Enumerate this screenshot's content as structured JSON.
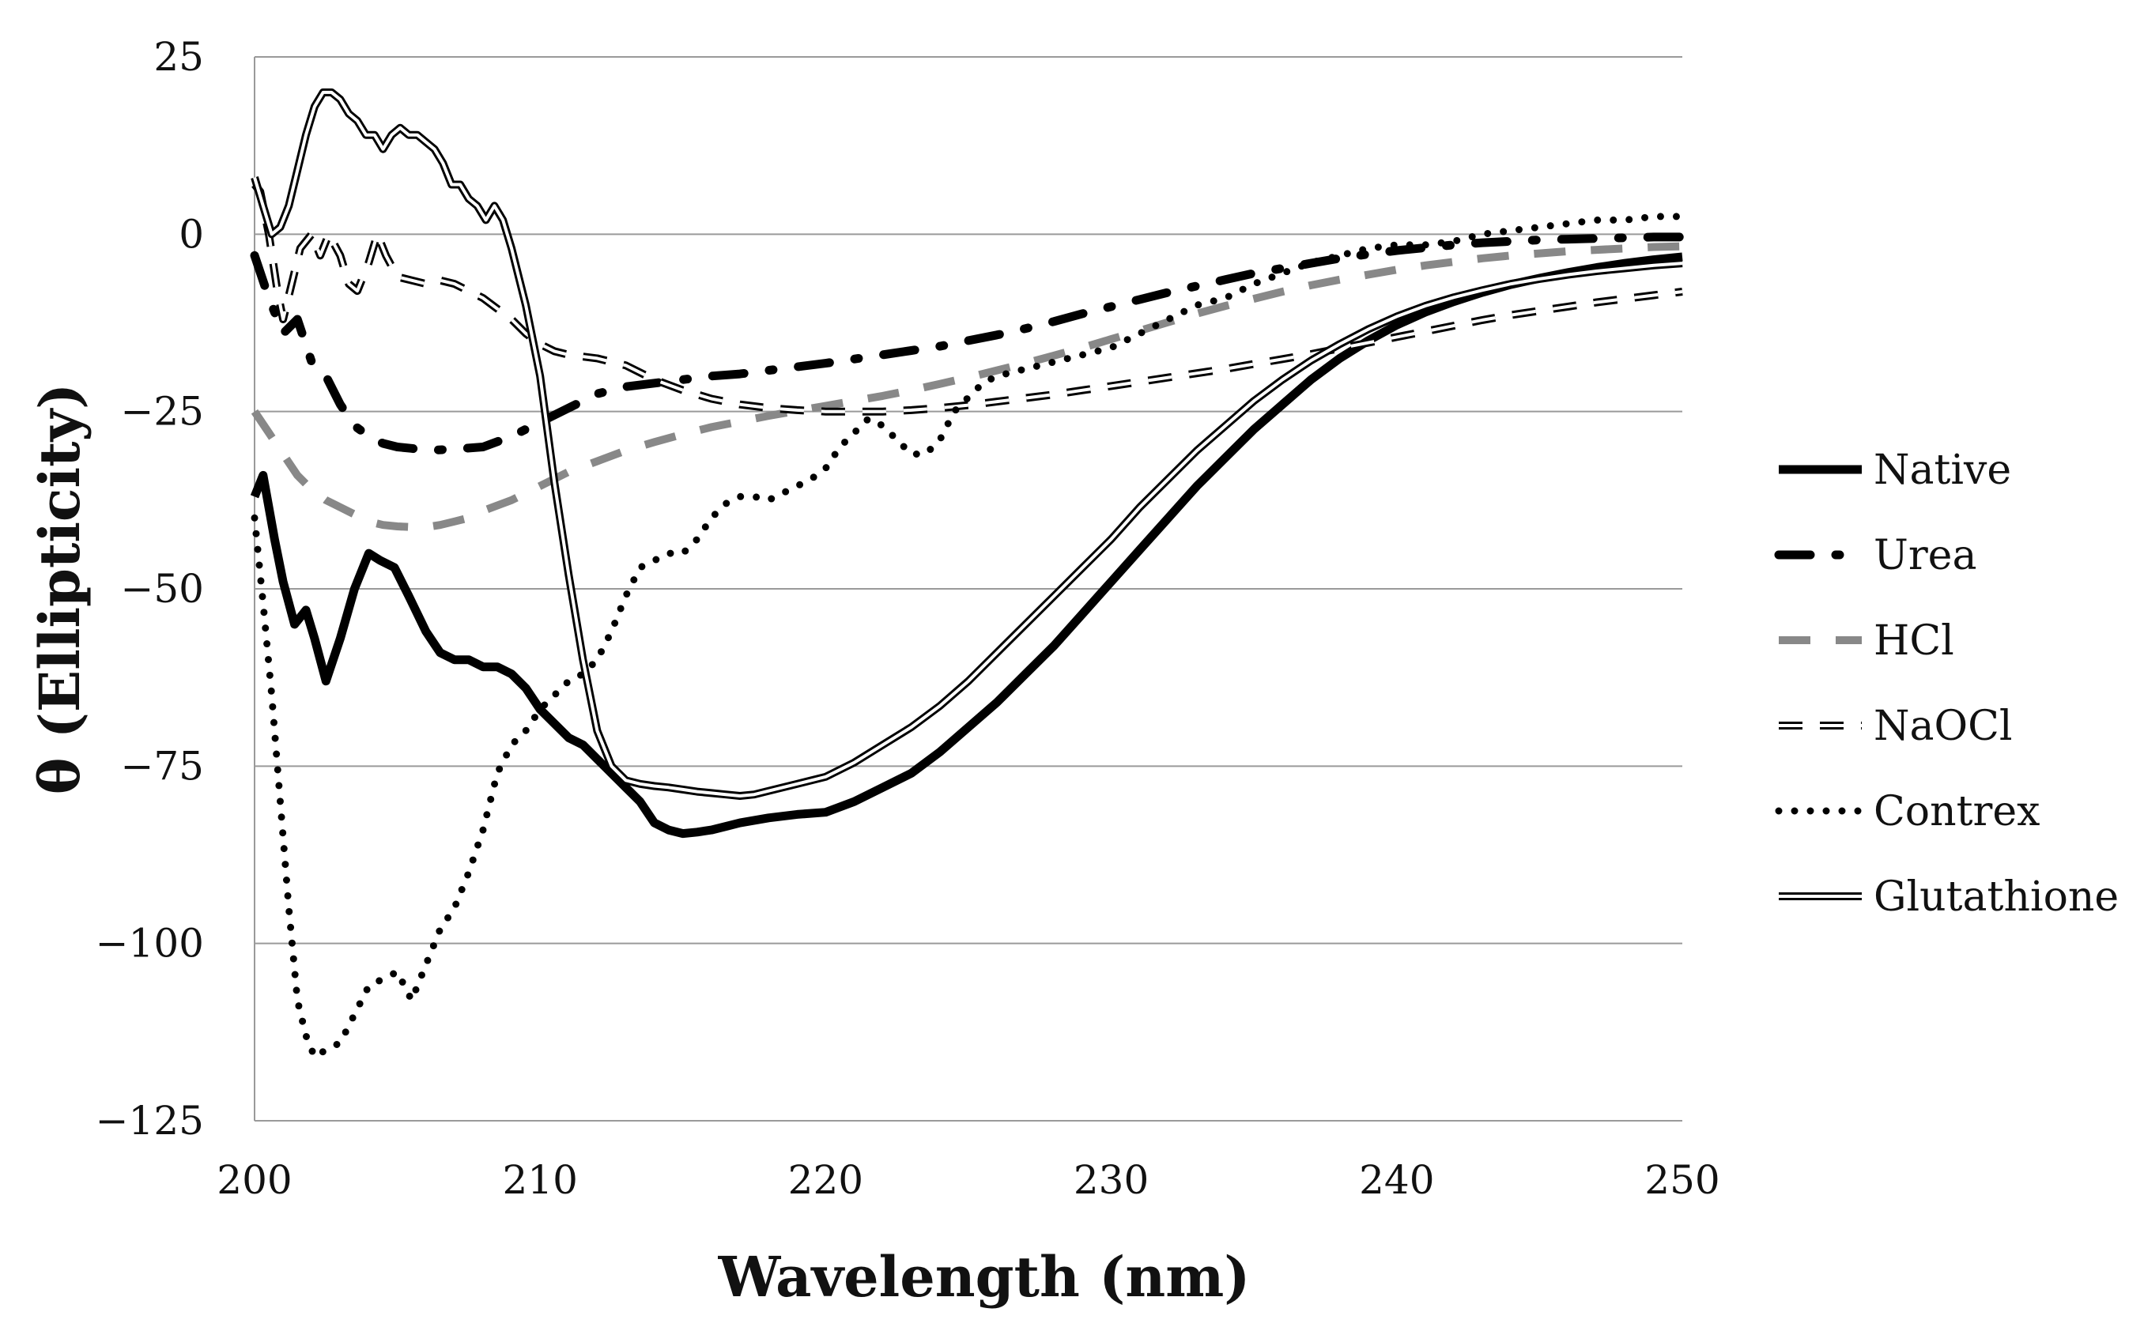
{
  "chart_data": {
    "type": "line",
    "title": "",
    "xlabel": "Wavelength (nm)",
    "ylabel": "θ (Ellipticity)",
    "xlim": [
      200,
      250
    ],
    "ylim": [
      -125,
      25
    ],
    "x_ticks": [
      200,
      210,
      220,
      230,
      240,
      250
    ],
    "y_ticks": [
      25,
      0,
      -25,
      -50,
      -75,
      -100,
      -125
    ],
    "x_tick_labels": [
      "200",
      "210",
      "220",
      "230",
      "240",
      "250"
    ],
    "y_tick_labels": [
      "25",
      "0",
      "−25",
      "−50",
      "−75",
      "−100",
      "−125"
    ],
    "grid": "horizontal",
    "legend_position": "right",
    "series": [
      {
        "name": "Native",
        "style": "solid-thick",
        "color": "#000000",
        "x": [
          200,
          200.3,
          200.7,
          201,
          201.4,
          201.8,
          202.1,
          202.5,
          203,
          203.5,
          204,
          204.4,
          204.9,
          205.4,
          206,
          206.5,
          207,
          207.5,
          208,
          208.5,
          209,
          209.5,
          210,
          210.5,
          211,
          211.5,
          212,
          212.5,
          213,
          213.5,
          214,
          214.5,
          215,
          215.5,
          216,
          216.5,
          217,
          218,
          219,
          220,
          221,
          222,
          223,
          224,
          225,
          226,
          227,
          228,
          229,
          230,
          231,
          232,
          233,
          234,
          235,
          236,
          237,
          238,
          239,
          240,
          241,
          242,
          243,
          244,
          245,
          246,
          247,
          248,
          249,
          250
        ],
        "y": [
          -37,
          -34,
          -43,
          -49,
          -55,
          -53,
          -57,
          -63,
          -57,
          -50,
          -45,
          -46,
          -47,
          -51,
          -56,
          -59,
          -60,
          -60,
          -61,
          -61,
          -62,
          -64,
          -67,
          -69,
          -71,
          -72,
          -74,
          -76,
          -78,
          -80,
          -83,
          -84,
          -84.5,
          -84.3,
          -84,
          -83.5,
          -83,
          -82.3,
          -81.8,
          -81.5,
          -80,
          -78,
          -76,
          -73,
          -69.5,
          -66,
          -62,
          -58,
          -53.5,
          -49,
          -44.5,
          -40,
          -35.5,
          -31.5,
          -27.5,
          -24,
          -20.5,
          -17.5,
          -15,
          -12.8,
          -11,
          -9.5,
          -8.2,
          -7.1,
          -6.2,
          -5.4,
          -4.7,
          -4.1,
          -3.6,
          -3.2
        ]
      },
      {
        "name": "Urea",
        "style": "dash-dot-thick",
        "color": "#000000",
        "x": [
          200,
          200.5,
          201,
          201.5,
          202,
          202.5,
          203,
          203.5,
          204,
          204.5,
          205,
          205.5,
          206,
          207,
          208,
          209,
          210,
          211,
          212,
          213,
          214,
          215,
          216,
          217,
          218,
          219,
          220,
          221,
          222,
          223,
          224,
          225,
          226,
          227,
          228,
          229,
          230,
          231,
          232,
          233,
          234,
          235,
          236,
          237,
          238,
          239,
          240,
          241,
          242,
          243,
          244,
          245,
          246,
          247,
          248,
          249,
          250
        ],
        "y": [
          -3,
          -9,
          -14,
          -12,
          -18,
          -20,
          -24,
          -27,
          -28.5,
          -29.5,
          -30,
          -30.2,
          -30.5,
          -30.3,
          -30,
          -28.5,
          -26.5,
          -24.5,
          -22.5,
          -21.5,
          -21,
          -20.5,
          -20,
          -19.7,
          -19.2,
          -18.7,
          -18.2,
          -17.6,
          -17,
          -16.4,
          -15.8,
          -15,
          -14.2,
          -13.3,
          -12.3,
          -11.2,
          -10.2,
          -9.2,
          -8.2,
          -7.3,
          -6.4,
          -5.5,
          -4.8,
          -4.1,
          -3.4,
          -2.8,
          -2.3,
          -1.9,
          -1.5,
          -1.2,
          -1,
          -0.8,
          -0.7,
          -0.6,
          -0.5,
          -0.4,
          -0.4
        ]
      },
      {
        "name": "HCl",
        "style": "dashed-gray-thick",
        "color": "#888888",
        "x": [
          200,
          200.5,
          201,
          201.5,
          202,
          202.5,
          203,
          203.5,
          204,
          204.5,
          205,
          205.5,
          206,
          206.5,
          207,
          207.5,
          208,
          209,
          210,
          211,
          212,
          213,
          214,
          215,
          216,
          217,
          218,
          219,
          220,
          221,
          222,
          223,
          224,
          225,
          226,
          227,
          228,
          229,
          230,
          231,
          232,
          233,
          234,
          235,
          236,
          237,
          238,
          239,
          240,
          241,
          242,
          243,
          244,
          245,
          246,
          247,
          248,
          249,
          250
        ],
        "y": [
          -25,
          -28,
          -31,
          -34,
          -36,
          -37.5,
          -38.5,
          -39.5,
          -40.5,
          -41,
          -41.2,
          -41.3,
          -41.3,
          -41,
          -40.5,
          -40,
          -39,
          -37.5,
          -35.5,
          -33.5,
          -32,
          -30.5,
          -29.3,
          -28.2,
          -27.2,
          -26.4,
          -25.6,
          -24.9,
          -24.2,
          -23.5,
          -22.8,
          -22,
          -21.1,
          -20.2,
          -19.2,
          -18.2,
          -17.1,
          -16,
          -14.8,
          -13.6,
          -12.4,
          -11.2,
          -10.1,
          -9.1,
          -8.1,
          -7.2,
          -6.4,
          -5.7,
          -5,
          -4.4,
          -3.9,
          -3.4,
          -3,
          -2.7,
          -2.4,
          -2.2,
          -2,
          -1.8,
          -1.7
        ]
      },
      {
        "name": "NaOCl",
        "style": "dashed-open",
        "color": "#000000",
        "x": [
          200,
          200.2,
          200.5,
          200.8,
          201,
          201.3,
          201.6,
          202,
          202.3,
          202.6,
          203,
          203.3,
          203.6,
          204,
          204.3,
          204.6,
          205,
          205.5,
          206,
          206.5,
          207,
          207.5,
          208,
          208.5,
          209,
          209.5,
          210,
          210.5,
          211,
          212,
          213,
          214,
          215,
          216,
          217,
          218,
          219,
          220,
          221,
          222,
          223,
          224,
          225,
          226,
          227,
          228,
          229,
          230,
          231,
          232,
          233,
          234,
          235,
          236,
          237,
          238,
          239,
          240,
          241,
          242,
          243,
          244,
          245,
          246,
          247,
          248,
          249,
          250
        ],
        "y": [
          7,
          6,
          0,
          -8,
          -12,
          -7,
          -2,
          0,
          -3,
          0,
          -3,
          -7,
          -8,
          -4,
          0,
          -3,
          -6,
          -6.5,
          -7,
          -6.5,
          -7,
          -8,
          -9,
          -10.5,
          -12,
          -14,
          -15.5,
          -16.5,
          -17,
          -17.5,
          -18.5,
          -20.5,
          -22,
          -23.2,
          -24,
          -24.5,
          -24.8,
          -25,
          -25,
          -25,
          -24.8,
          -24.5,
          -24.1,
          -23.6,
          -23.1,
          -22.6,
          -22,
          -21.4,
          -20.8,
          -20.2,
          -19.6,
          -19,
          -18.3,
          -17.6,
          -16.9,
          -16.1,
          -15.3,
          -14.5,
          -13.7,
          -12.9,
          -12.1,
          -11.4,
          -10.8,
          -10.2,
          -9.6,
          -9.1,
          -8.6,
          -8.1
        ]
      },
      {
        "name": "Contrex",
        "style": "dotted",
        "color": "#000000",
        "x": [
          200,
          200.3,
          200.6,
          200.9,
          201.2,
          201.5,
          201.8,
          202.1,
          202.5,
          203,
          203.5,
          204,
          204.5,
          205,
          205.5,
          206,
          206.5,
          207,
          207.5,
          208,
          208.5,
          209,
          209.5,
          210,
          210.5,
          211,
          211.5,
          212,
          212.5,
          213,
          213.5,
          214,
          214.5,
          215,
          215.5,
          216,
          216.5,
          217,
          217.5,
          218,
          218.5,
          219,
          219.5,
          220,
          220.5,
          221,
          221.5,
          222,
          222.5,
          223,
          223.5,
          224,
          224.5,
          225,
          225.5,
          226,
          227,
          228,
          229,
          230,
          231,
          232,
          233,
          234,
          235,
          236,
          237,
          238,
          239,
          240,
          241,
          242,
          243,
          244,
          245,
          246,
          247,
          248,
          249,
          250
        ],
        "y": [
          -40,
          -52,
          -65,
          -80,
          -95,
          -108,
          -113,
          -116,
          -115,
          -114,
          -110,
          -106,
          -105,
          -104,
          -108,
          -103,
          -98,
          -95,
          -90,
          -84,
          -76,
          -72,
          -70,
          -67,
          -65,
          -63,
          -62,
          -60,
          -56,
          -51,
          -47,
          -46,
          -45,
          -45,
          -43,
          -40,
          -38,
          -37,
          -37,
          -37.5,
          -36.5,
          -35.5,
          -34.5,
          -33,
          -30,
          -28,
          -26,
          -27,
          -29,
          -31,
          -31,
          -29,
          -25,
          -23,
          -21,
          -20,
          -19,
          -18,
          -17,
          -16,
          -14,
          -12,
          -10,
          -9,
          -7,
          -5.5,
          -4,
          -3,
          -2,
          -1.5,
          -1.5,
          -1,
          0,
          0.5,
          1,
          1.5,
          2,
          2,
          2.5,
          2.5
        ]
      },
      {
        "name": "Glutathione",
        "style": "double-line",
        "color": "#000000",
        "x": [
          200,
          200.3,
          200.6,
          200.9,
          201.2,
          201.5,
          201.8,
          202.1,
          202.4,
          202.7,
          203,
          203.3,
          203.6,
          203.9,
          204.2,
          204.5,
          204.8,
          205.1,
          205.4,
          205.7,
          206,
          206.3,
          206.6,
          206.9,
          207.2,
          207.5,
          207.8,
          208.1,
          208.4,
          208.7,
          209,
          209.5,
          210,
          210.5,
          211,
          211.5,
          212,
          212.5,
          213,
          213.5,
          214,
          214.5,
          215,
          215.5,
          216,
          216.5,
          217,
          217.5,
          218,
          219,
          220,
          221,
          222,
          223,
          224,
          225,
          226,
          227,
          228,
          229,
          230,
          231,
          232,
          233,
          234,
          235,
          236,
          237,
          238,
          239,
          240,
          241,
          242,
          243,
          244,
          245,
          246,
          247,
          248,
          249,
          250
        ],
        "y": [
          8,
          4,
          0,
          1,
          4,
          9,
          14,
          18,
          20,
          20,
          19,
          17,
          16,
          14,
          14,
          12,
          14,
          15,
          14,
          14,
          13,
          12,
          10,
          7,
          7,
          5,
          4,
          2,
          4,
          2,
          -2,
          -10,
          -20,
          -35,
          -48,
          -60,
          -70,
          -75,
          -77,
          -77.5,
          -77.8,
          -78,
          -78.3,
          -78.6,
          -78.8,
          -79,
          -79.2,
          -79,
          -78.5,
          -77.5,
          -76.5,
          -74.5,
          -72,
          -69.5,
          -66.5,
          -63,
          -59,
          -55,
          -51,
          -47,
          -43,
          -38.5,
          -34.5,
          -30.5,
          -27,
          -23.5,
          -20.5,
          -17.8,
          -15.5,
          -13.4,
          -11.6,
          -10.1,
          -8.9,
          -7.9,
          -7,
          -6.3,
          -5.7,
          -5.2,
          -4.8,
          -4.4,
          -4.1
        ]
      }
    ]
  }
}
